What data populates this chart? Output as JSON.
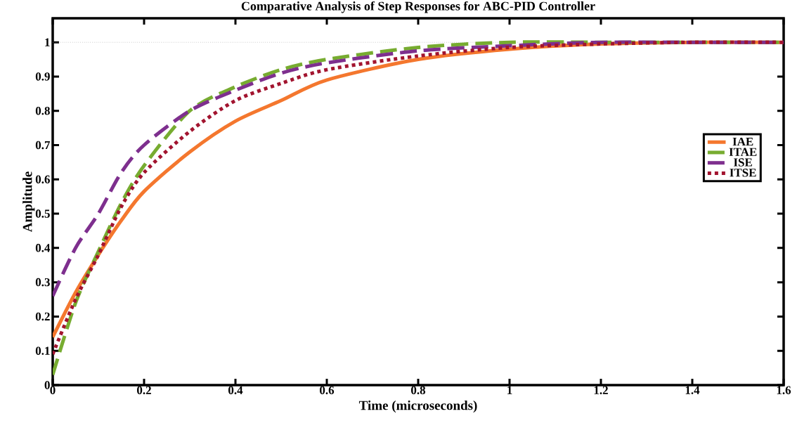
{
  "chart_data": {
    "type": "line",
    "title": "Comparative Analysis of Step Responses for ABC-PID Controller",
    "xlabel": "Time (microseconds)",
    "ylabel": "Amplitude",
    "x": [
      0,
      0.05,
      0.1,
      0.15,
      0.2,
      0.3,
      0.4,
      0.5,
      0.6,
      0.8,
      1.0,
      1.2,
      1.4,
      1.6
    ],
    "series": [
      {
        "name": "IAE",
        "color": "#f4772e",
        "line_style": "solid",
        "values": [
          0.14,
          0.27,
          0.38,
          0.48,
          0.565,
          0.68,
          0.77,
          0.83,
          0.89,
          0.95,
          0.98,
          0.995,
          1.0,
          1.0
        ]
      },
      {
        "name": "ITAE",
        "color": "#77ac30",
        "line_style": "dashed",
        "values": [
          0.03,
          0.24,
          0.39,
          0.53,
          0.64,
          0.8,
          0.87,
          0.92,
          0.95,
          0.985,
          1.0,
          1.0,
          1.0,
          1.0
        ]
      },
      {
        "name": "ISE",
        "color": "#7e2f8e",
        "line_style": "dashed",
        "values": [
          0.26,
          0.4,
          0.5,
          0.62,
          0.7,
          0.8,
          0.86,
          0.91,
          0.94,
          0.975,
          0.99,
          1.0,
          1.0,
          1.0
        ]
      },
      {
        "name": "ITSE",
        "color": "#a2142f",
        "line_style": "dotted",
        "values": [
          0.09,
          0.25,
          0.38,
          0.52,
          0.62,
          0.74,
          0.83,
          0.88,
          0.92,
          0.96,
          0.985,
          0.995,
          1.0,
          1.0
        ]
      }
    ],
    "xlim": [
      0,
      1.6
    ],
    "ylim": [
      0,
      1.07
    ],
    "xticks": [
      0,
      0.2,
      0.4,
      0.6,
      0.8,
      1,
      1.2,
      1.4,
      1.6
    ],
    "yticks": [
      0,
      0.1,
      0.2,
      0.3,
      0.4,
      0.5,
      0.6,
      0.7,
      0.8,
      0.9,
      1
    ],
    "ref_lines": [
      {
        "axis": "y",
        "value": 1,
        "color": "#aaaaaa",
        "line_style": "dotted"
      }
    ],
    "legend": "right",
    "grid": false
  }
}
